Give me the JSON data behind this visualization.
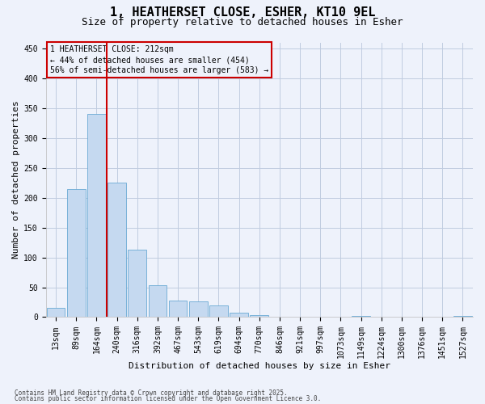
{
  "title": "1, HEATHERSET CLOSE, ESHER, KT10 9EL",
  "subtitle": "Size of property relative to detached houses in Esher",
  "xlabel": "Distribution of detached houses by size in Esher",
  "ylabel": "Number of detached properties",
  "bar_labels": [
    "13sqm",
    "89sqm",
    "164sqm",
    "240sqm",
    "316sqm",
    "392sqm",
    "467sqm",
    "543sqm",
    "619sqm",
    "694sqm",
    "770sqm",
    "846sqm",
    "921sqm",
    "997sqm",
    "1073sqm",
    "1149sqm",
    "1224sqm",
    "1300sqm",
    "1376sqm",
    "1451sqm",
    "1527sqm"
  ],
  "bar_values": [
    15,
    215,
    340,
    225,
    113,
    54,
    28,
    26,
    19,
    7,
    4,
    1,
    1,
    0,
    0,
    2,
    0,
    0,
    1,
    0,
    2
  ],
  "bar_color": "#c5d9f0",
  "bar_edgecolor": "#6aaad4",
  "vline_color": "#cc0000",
  "vline_x": 2.5,
  "ylim_max": 460,
  "yticks": [
    0,
    50,
    100,
    150,
    200,
    250,
    300,
    350,
    400,
    450
  ],
  "annotation_text": "1 HEATHERSET CLOSE: 212sqm\n← 44% of detached houses are smaller (454)\n56% of semi-detached houses are larger (583) →",
  "annotation_box_edgecolor": "#cc0000",
  "footer1": "Contains HM Land Registry data © Crown copyright and database right 2025.",
  "footer2": "Contains public sector information licensed under the Open Government Licence 3.0.",
  "bg_color": "#eef2fb",
  "grid_color": "#c0cce0",
  "title_fontsize": 11,
  "subtitle_fontsize": 9,
  "axis_label_fontsize": 8,
  "tick_fontsize": 7,
  "annotation_fontsize": 7,
  "footer_fontsize": 5.5
}
